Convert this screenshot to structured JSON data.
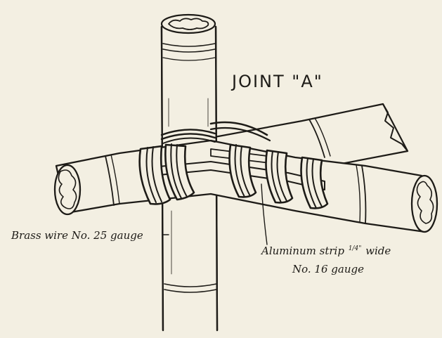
{
  "title": "JOINT \"A\"",
  "labels": {
    "brass_wire": "Brass wire No. 25 gauge",
    "aluminum_strip_line1_before": "Aluminum strip",
    "aluminum_strip_fraction": "1/4\"",
    "aluminum_strip_line1_after": "wide",
    "aluminum_strip_line2": "No. 16 gauge"
  },
  "colors": {
    "paper": "#f3efe2",
    "ink": "#1d1b17"
  }
}
